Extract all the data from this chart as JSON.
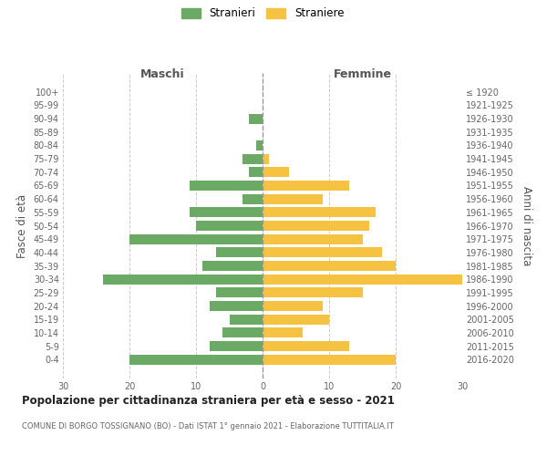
{
  "age_groups": [
    "100+",
    "95-99",
    "90-94",
    "85-89",
    "80-84",
    "75-79",
    "70-74",
    "65-69",
    "60-64",
    "55-59",
    "50-54",
    "45-49",
    "40-44",
    "35-39",
    "30-34",
    "25-29",
    "20-24",
    "15-19",
    "10-14",
    "5-9",
    "0-4"
  ],
  "birth_years": [
    "≤ 1920",
    "1921-1925",
    "1926-1930",
    "1931-1935",
    "1936-1940",
    "1941-1945",
    "1946-1950",
    "1951-1955",
    "1956-1960",
    "1961-1965",
    "1966-1970",
    "1971-1975",
    "1976-1980",
    "1981-1985",
    "1986-1990",
    "1991-1995",
    "1996-2000",
    "2001-2005",
    "2006-2010",
    "2011-2015",
    "2016-2020"
  ],
  "maschi": [
    0,
    0,
    2,
    0,
    1,
    3,
    2,
    11,
    3,
    11,
    10,
    20,
    7,
    9,
    24,
    7,
    8,
    5,
    6,
    8,
    20
  ],
  "femmine": [
    0,
    0,
    0,
    0,
    0,
    1,
    4,
    13,
    9,
    17,
    16,
    15,
    18,
    20,
    30,
    15,
    9,
    10,
    6,
    13,
    20
  ],
  "color_maschi": "#6aaa64",
  "color_femmine": "#f5c242",
  "title_main": "Popolazione per cittadinanza straniera per età e sesso - 2021",
  "title_sub": "COMUNE DI BORGO TOSSIGNANO (BO) - Dati ISTAT 1° gennaio 2021 - Elaborazione TUTTITALIA.IT",
  "legend_maschi": "Stranieri",
  "legend_femmine": "Straniere",
  "header_left": "Maschi",
  "header_right": "Femmine",
  "ylabel_left": "Fasce di età",
  "ylabel_right": "Anni di nascita",
  "xlim": 30,
  "xticks": [
    -30,
    -20,
    -10,
    0,
    10,
    20,
    30
  ],
  "xtick_labels": [
    "30",
    "20",
    "10",
    "0",
    "10",
    "20",
    "30"
  ],
  "background_color": "#ffffff",
  "grid_color": "#cccccc"
}
